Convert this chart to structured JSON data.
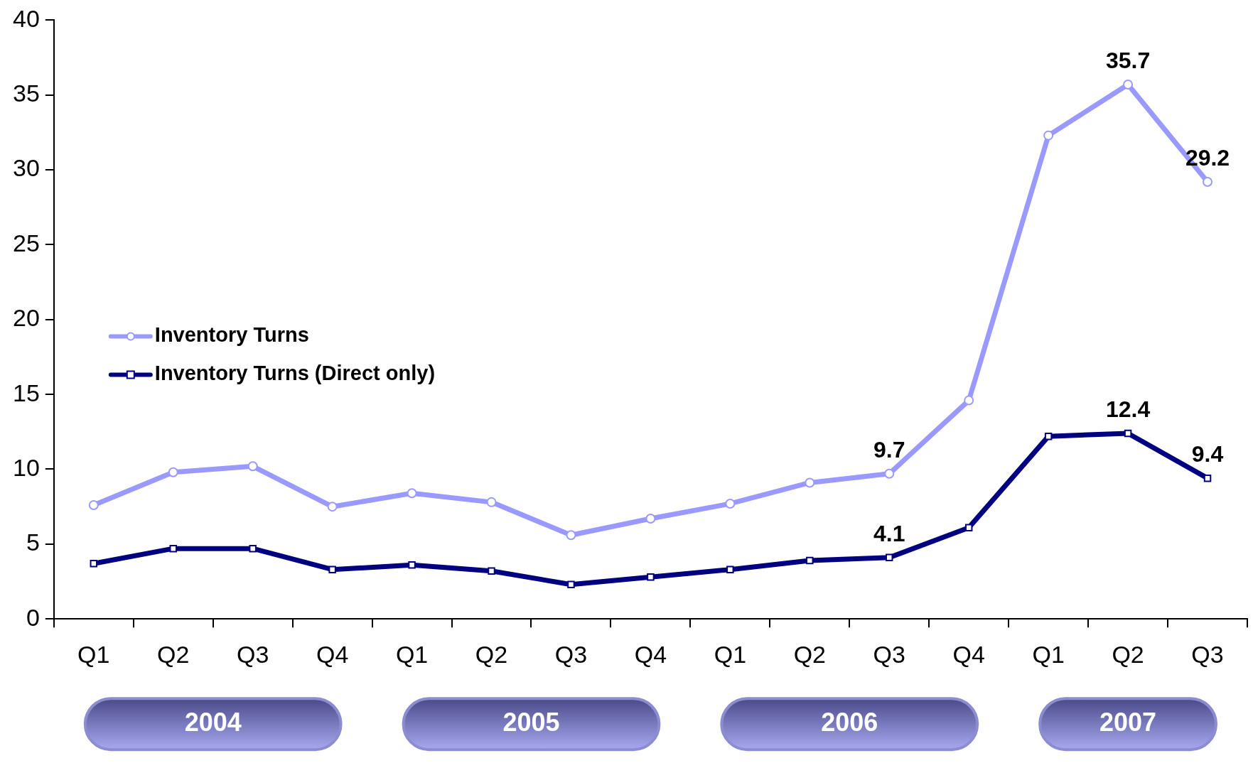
{
  "chart_data": {
    "type": "line",
    "categories": [
      "Q1",
      "Q2",
      "Q3",
      "Q4",
      "Q1",
      "Q2",
      "Q3",
      "Q4",
      "Q1",
      "Q2",
      "Q3",
      "Q4",
      "Q1",
      "Q2",
      "Q3"
    ],
    "annotations": [
      "2004",
      "2005",
      "2006",
      "2007"
    ],
    "series": [
      {
        "name": "Inventory Turns",
        "color": "#9999ff",
        "marker": "circle",
        "values": [
          7.6,
          9.8,
          10.2,
          7.5,
          8.4,
          7.8,
          5.6,
          6.7,
          7.7,
          9.1,
          9.7,
          14.6,
          32.3,
          35.7,
          29.2
        ],
        "value_labels": [
          null,
          null,
          null,
          null,
          null,
          null,
          null,
          null,
          null,
          null,
          "9.7",
          null,
          null,
          "35.7",
          "29.2"
        ]
      },
      {
        "name": "Inventory Turns (Direct only)",
        "color": "#000080",
        "marker": "square",
        "values": [
          3.7,
          4.7,
          4.7,
          3.3,
          3.6,
          3.2,
          2.3,
          2.8,
          3.3,
          3.9,
          4.1,
          6.1,
          12.2,
          12.4,
          9.4
        ],
        "value_labels": [
          null,
          null,
          null,
          null,
          null,
          null,
          null,
          null,
          null,
          null,
          "4.1",
          null,
          null,
          "12.4",
          "9.4"
        ]
      }
    ],
    "ylim": [
      0,
      40
    ],
    "yticks": [
      0,
      5,
      10,
      15,
      20,
      25,
      30,
      35,
      40
    ],
    "grid": false,
    "legend": "left",
    "line_style": "solid"
  }
}
